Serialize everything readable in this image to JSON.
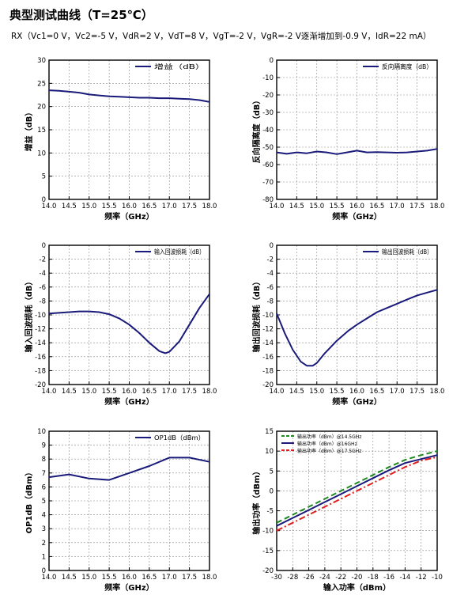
{
  "page": {
    "title": "典型测试曲线（T=25℃）",
    "subtitle": "RX（Vc1=0 V，Vc2=-5 V，VdR=2 V，VdT=8 V，VgT=-2 V，VgR=-2 V逐渐增加到-0.9 V，IdR=22 mA）"
  },
  "colors": {
    "navy": "#1a1a7a",
    "green": "#1e8a1e",
    "red": "#e02020",
    "grid": "#888888"
  },
  "chart_data": [
    {
      "id": "gain",
      "type": "line",
      "xlabel": "频率（GHz）",
      "ylabel": "增益（dB）",
      "xlim": [
        14.0,
        18.0
      ],
      "ylim": [
        0,
        30
      ],
      "xticks": [
        "14.0",
        "14.5",
        "15.0",
        "15.5",
        "16.0",
        "16.5",
        "17.0",
        "17.5",
        "18.0"
      ],
      "yticks": [
        "0",
        "5",
        "10",
        "15",
        "20",
        "25",
        "30"
      ],
      "grid": true,
      "legend": "top-right",
      "series": [
        {
          "name": "增益（dB）",
          "color": "navy",
          "dash": "solid",
          "x": [
            14.0,
            14.25,
            14.5,
            14.75,
            15.0,
            15.25,
            15.5,
            15.75,
            16.0,
            16.25,
            16.5,
            16.75,
            17.0,
            17.25,
            17.5,
            17.75,
            18.0
          ],
          "y": [
            23.5,
            23.4,
            23.2,
            23.0,
            22.6,
            22.4,
            22.2,
            22.1,
            22.0,
            21.9,
            21.9,
            21.8,
            21.8,
            21.7,
            21.6,
            21.4,
            21.0
          ]
        }
      ]
    },
    {
      "id": "isolation",
      "type": "line",
      "xlabel": "频率（GHz）",
      "ylabel": "反向隔离度（dB）",
      "xlim": [
        14.0,
        18.0
      ],
      "ylim": [
        -80,
        0
      ],
      "xticks": [
        "14.0",
        "14.5",
        "15.0",
        "15.5",
        "16.0",
        "16.5",
        "17.0",
        "17.5",
        "18.0"
      ],
      "yticks": [
        "0",
        "-10",
        "-20",
        "-30",
        "-40",
        "-50",
        "-60",
        "-70",
        "-80"
      ],
      "grid": true,
      "legend": "top-right",
      "series": [
        {
          "name": "反向隔离度（dB）",
          "color": "navy",
          "dash": "solid",
          "x": [
            14.0,
            14.25,
            14.5,
            14.75,
            15.0,
            15.25,
            15.5,
            15.75,
            16.0,
            16.25,
            16.5,
            16.75,
            17.0,
            17.25,
            17.5,
            17.75,
            18.0
          ],
          "y": [
            -53,
            -53.8,
            -53,
            -53.5,
            -52.5,
            -53,
            -54,
            -53,
            -52,
            -53,
            -52.8,
            -53,
            -53.2,
            -53,
            -52.5,
            -52,
            -51
          ]
        }
      ]
    },
    {
      "id": "input-return-loss",
      "type": "line",
      "xlabel": "频率（GHz）",
      "ylabel": "输入回波损耗（dB）",
      "xlim": [
        14.0,
        18.0
      ],
      "ylim": [
        -20,
        0
      ],
      "xticks": [
        "14.0",
        "14.5",
        "15.0",
        "15.5",
        "16.0",
        "16.5",
        "17.0",
        "17.5",
        "18.0"
      ],
      "yticks": [
        "0",
        "-2",
        "-4",
        "-6",
        "-8",
        "-10",
        "-12",
        "-14",
        "-16",
        "-18",
        "-20"
      ],
      "grid": true,
      "legend": "top-right",
      "series": [
        {
          "name": "输入回波损耗（dB）",
          "color": "navy",
          "dash": "solid",
          "x": [
            14.0,
            14.25,
            14.5,
            14.75,
            15.0,
            15.25,
            15.5,
            15.75,
            16.0,
            16.25,
            16.5,
            16.75,
            16.9,
            17.0,
            17.25,
            17.5,
            17.75,
            18.0
          ],
          "y": [
            -9.8,
            -9.7,
            -9.6,
            -9.5,
            -9.5,
            -9.6,
            -9.9,
            -10.5,
            -11.4,
            -12.6,
            -14.0,
            -15.2,
            -15.5,
            -15.3,
            -13.8,
            -11.4,
            -9.0,
            -7.0
          ]
        }
      ]
    },
    {
      "id": "output-return-loss",
      "type": "line",
      "xlabel": "频率（GHz）",
      "ylabel": "输出回波损耗（dB）",
      "xlim": [
        14.0,
        18.0
      ],
      "ylim": [
        -20,
        0
      ],
      "xticks": [
        "14.0",
        "14.5",
        "15.0",
        "15.5",
        "16.0",
        "16.5",
        "17.0",
        "17.5",
        "18.0"
      ],
      "yticks": [
        "0",
        "-2",
        "-4",
        "-6",
        "-8",
        "-10",
        "-12",
        "-14",
        "-16",
        "-18",
        "-20"
      ],
      "grid": true,
      "legend": "top-right",
      "series": [
        {
          "name": "输出回波损耗（dB）",
          "color": "navy",
          "dash": "solid",
          "x": [
            14.0,
            14.2,
            14.4,
            14.6,
            14.75,
            14.9,
            15.0,
            15.2,
            15.5,
            15.8,
            16.0,
            16.25,
            16.5,
            16.75,
            17.0,
            17.25,
            17.5,
            17.75,
            18.0
          ],
          "y": [
            -9.8,
            -12.6,
            -15.0,
            -16.7,
            -17.3,
            -17.3,
            -16.9,
            -15.5,
            -13.7,
            -12.2,
            -11.4,
            -10.5,
            -9.6,
            -9.0,
            -8.4,
            -7.8,
            -7.2,
            -6.8,
            -6.4
          ]
        }
      ]
    },
    {
      "id": "op1db",
      "type": "line",
      "xlabel": "频率（GHz）",
      "ylabel": "OP1dB（dBm）",
      "xlim": [
        14.0,
        18.0
      ],
      "ylim": [
        0,
        10
      ],
      "xticks": [
        "14.0",
        "14.5",
        "15.0",
        "15.5",
        "16.0",
        "16.5",
        "17.0",
        "17.5",
        "18.0"
      ],
      "yticks": [
        "0",
        "1",
        "2",
        "3",
        "4",
        "5",
        "6",
        "7",
        "8",
        "9",
        "10"
      ],
      "grid": true,
      "legend": "top-right",
      "series": [
        {
          "name": "OP1dB（dBm）",
          "color": "navy",
          "dash": "solid",
          "x": [
            14.0,
            14.5,
            15.0,
            15.5,
            16.0,
            16.5,
            17.0,
            17.5,
            18.0
          ],
          "y": [
            6.7,
            6.9,
            6.6,
            6.5,
            7.0,
            7.5,
            8.1,
            8.1,
            7.8
          ]
        }
      ]
    },
    {
      "id": "output-power",
      "type": "line",
      "xlabel": "输入功率（dBm）",
      "ylabel": "输出功率（dBm）",
      "xlim": [
        -30,
        -10
      ],
      "ylim": [
        -20,
        15
      ],
      "xticks": [
        "-30",
        "-28",
        "-26",
        "-24",
        "-22",
        "-20",
        "-18",
        "-16",
        "-14",
        "-12",
        "-10"
      ],
      "yticks": [
        "-20",
        "-15",
        "-10",
        "-5",
        "0",
        "5",
        "10",
        "15"
      ],
      "grid": true,
      "legend": "top-left",
      "series": [
        {
          "name": "输出功率（dBm）@14.5GHz",
          "color": "green",
          "dash": "dashed",
          "x": [
            -30,
            -28,
            -26,
            -24,
            -22,
            -20,
            -18,
            -16,
            -14,
            -12,
            -10
          ],
          "y": [
            -8.0,
            -6.0,
            -4.0,
            -2.0,
            0.0,
            2.0,
            4.0,
            6.0,
            7.8,
            9.0,
            10.0
          ]
        },
        {
          "name": "输出功率（dBm）@16GHz",
          "color": "navy",
          "dash": "solid",
          "x": [
            -30,
            -28,
            -26,
            -24,
            -22,
            -20,
            -18,
            -16,
            -14,
            -12,
            -10
          ],
          "y": [
            -8.8,
            -6.8,
            -4.8,
            -2.8,
            -0.8,
            1.2,
            3.2,
            5.2,
            7.0,
            8.0,
            9.0
          ]
        },
        {
          "name": "输出功率（dBm）@17.5GHz",
          "color": "red",
          "dash": "dashdot",
          "x": [
            -30,
            -28,
            -26,
            -24,
            -22,
            -20,
            -18,
            -16,
            -14,
            -12,
            -10
          ],
          "y": [
            -10.0,
            -8.0,
            -6.0,
            -4.0,
            -2.0,
            0.0,
            2.0,
            4.0,
            6.0,
            7.6,
            8.5
          ]
        }
      ]
    }
  ]
}
